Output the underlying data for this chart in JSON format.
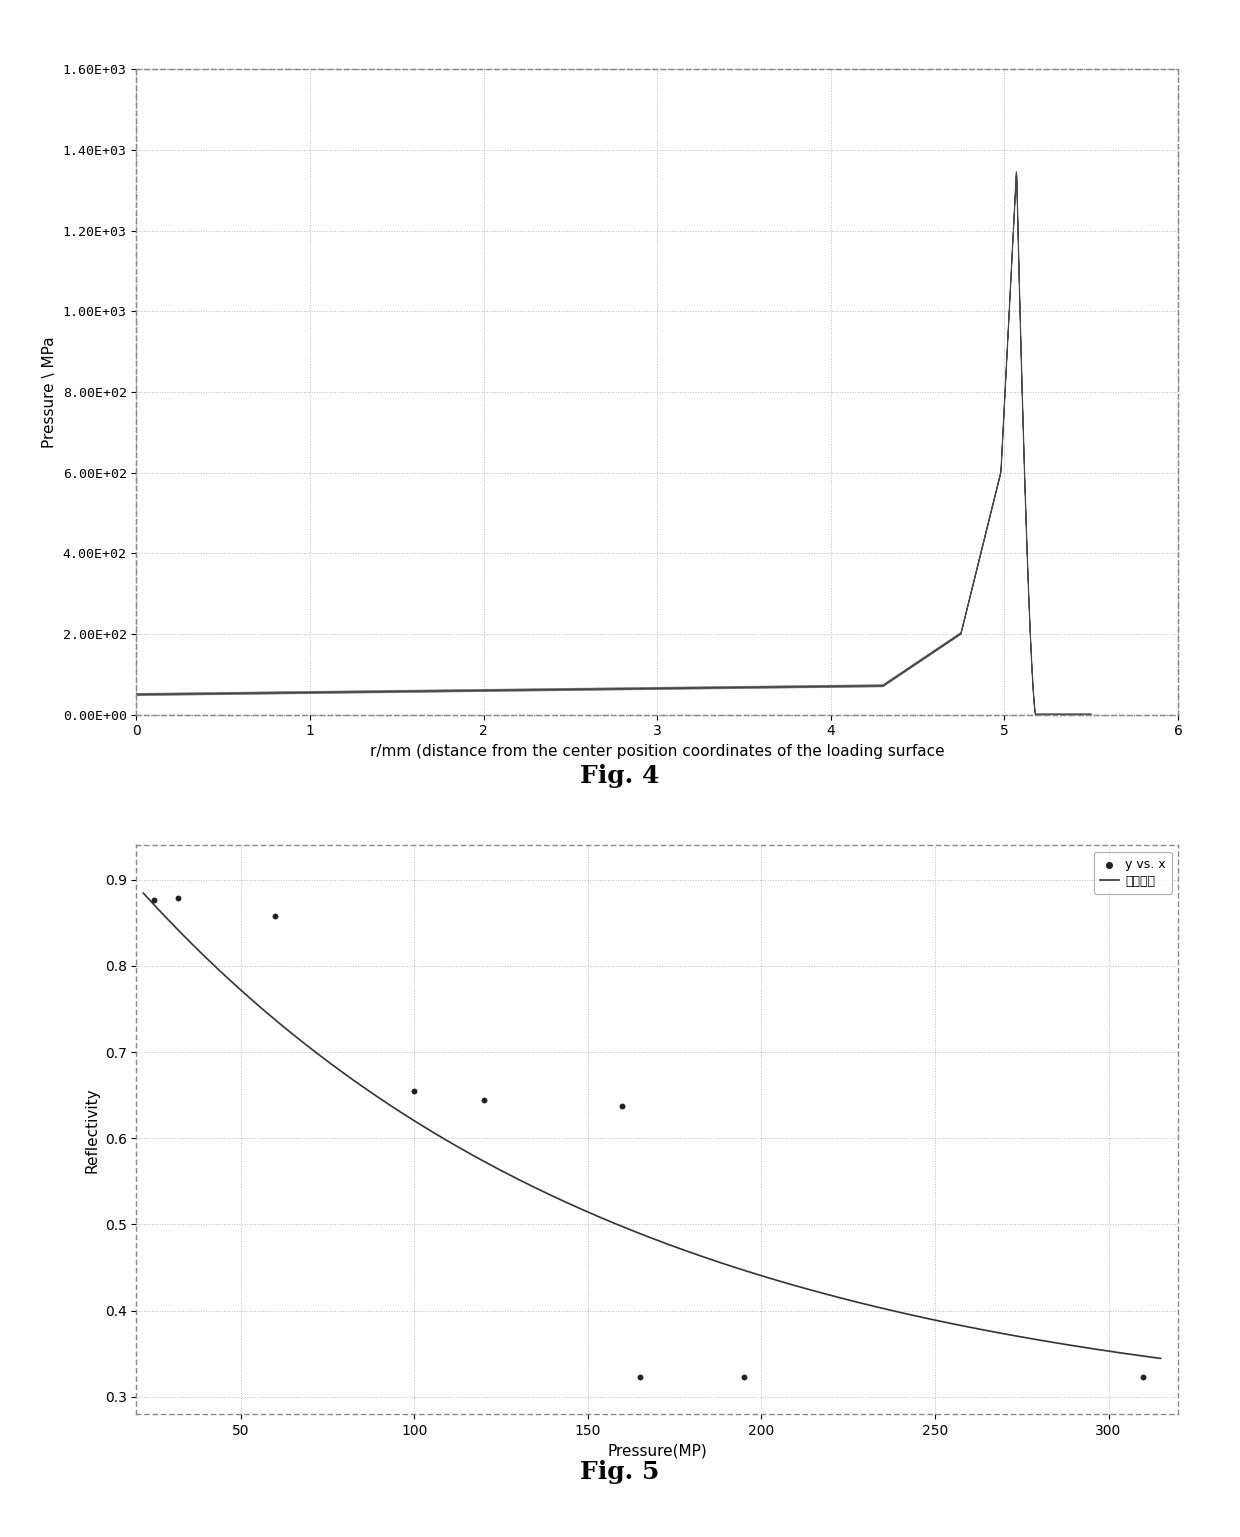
{
  "fig4": {
    "xlabel": "r/mm (distance from the center position coordinates of the loading surface",
    "ylabel": "Pressure \\ MPa",
    "xlim": [
      0,
      6
    ],
    "ylim": [
      0,
      1600
    ],
    "ytick_vals": [
      0,
      200,
      400,
      600,
      800,
      1000,
      1200,
      1400,
      1600
    ],
    "ytick_labels": [
      "0.00E+00",
      "2.00E+02",
      "4.00E+02",
      "6.00E+02",
      "8.00E+02",
      "1.00E+03",
      "1.20E+03",
      "1.40E+03",
      "1.60E+03"
    ],
    "xticks": [
      0,
      1,
      2,
      3,
      4,
      5,
      6
    ],
    "line_color": "#444444",
    "line_width": 1.0,
    "bg_color": "#ffffff",
    "grid_color": "#bbbbbb",
    "border_color": "#888888",
    "hatch_color": "#555555",
    "hatch_n": 20,
    "hatch_spread": 3.0
  },
  "fig5": {
    "xlabel": "Pressure(MP)",
    "ylabel": "Reflectivity",
    "xlim": [
      20,
      320
    ],
    "ylim": [
      0.28,
      0.94
    ],
    "yticks": [
      0.3,
      0.4,
      0.5,
      0.6,
      0.7,
      0.8,
      0.9
    ],
    "xticks": [
      50,
      100,
      150,
      200,
      250,
      300
    ],
    "scatter_x": [
      25,
      32,
      60,
      100,
      120,
      165,
      195,
      310
    ],
    "scatter_y": [
      0.876,
      0.879,
      0.858,
      0.655,
      0.644,
      0.323,
      0.323,
      0.323
    ],
    "scatter_x2": [
      160
    ],
    "scatter_y2": [
      0.638
    ],
    "scatter_color": "#222222",
    "scatter_size": 18,
    "fit_color": "#333333",
    "fit_linestyle": "-",
    "fit_linewidth": 1.2,
    "legend_labels": [
      "y vs. x",
      "拟合曲线"
    ],
    "bg_color": "#ffffff",
    "grid_color": "#bbbbbb",
    "fit_a": 0.72,
    "fit_b": 0.0072,
    "fit_c": 0.27
  },
  "fig4_label": "Fig. 4",
  "fig5_label": "Fig. 5",
  "label_fontsize": 18,
  "background_color": "#ffffff"
}
